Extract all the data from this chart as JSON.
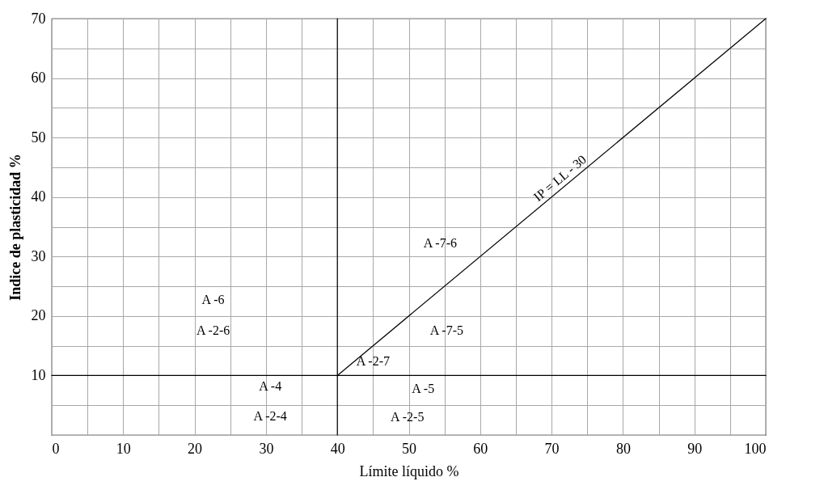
{
  "chart_data": {
    "type": "line",
    "xlabel": "Límite líquido %",
    "ylabel": "Indice de plasticidad %",
    "xlim": [
      0,
      100
    ],
    "ylim": [
      0,
      70
    ],
    "xticks": [
      0,
      {
        "value": 5,
        "label": null
      },
      10,
      {
        "value": 15,
        "label": null
      },
      20,
      {
        "value": 25,
        "label": null
      },
      30,
      {
        "value": 35,
        "label": null
      },
      40,
      {
        "value": 45,
        "label": null
      },
      50,
      {
        "value": 55,
        "label": null
      },
      60,
      {
        "value": 65,
        "label": null
      },
      70,
      {
        "value": 75,
        "label": null
      },
      80,
      {
        "value": 85,
        "label": null
      },
      90,
      {
        "value": 95,
        "label": null
      },
      100
    ],
    "yticks": [
      {
        "value": 0,
        "label": null
      },
      {
        "value": 5,
        "label": null
      },
      10,
      {
        "value": 15,
        "label": null
      },
      20,
      {
        "value": 25,
        "label": null
      },
      30,
      {
        "value": 35,
        "label": null
      },
      40,
      {
        "value": 45,
        "label": null
      },
      50,
      {
        "value": 55,
        "label": null
      },
      60,
      {
        "value": 65,
        "label": null
      },
      70
    ],
    "grid": true,
    "series": [
      {
        "color": "#000000",
        "x": [
          40,
          100
        ],
        "values": [
          10,
          70
        ]
      },
      {
        "color": "#000000",
        "x": [
          40,
          40
        ],
        "values": [
          0,
          70
        ]
      },
      {
        "color": "#000000",
        "x": [
          0,
          100
        ],
        "values": [
          10,
          10
        ]
      }
    ],
    "annotations": [
      {
        "text": "IP = LL - 30",
        "x": 72,
        "y": 42
      },
      "A -7-6",
      "A -6",
      "A -2-6",
      "A -7-5",
      "A -2-7",
      "A -4",
      "A -2-4",
      "A -5",
      "A -2-5"
    ]
  }
}
